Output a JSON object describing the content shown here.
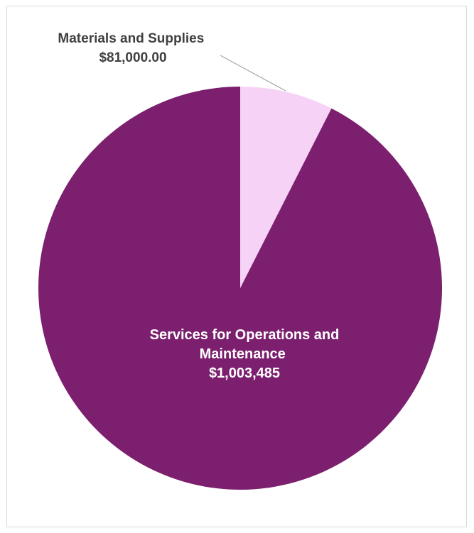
{
  "chart_data": {
    "type": "pie",
    "title": "",
    "slices": [
      {
        "name": "Materials and Supplies",
        "value": 81000.0,
        "value_label": "$81,000.00",
        "color": "#f6d3f6"
      },
      {
        "name": "Services for Operations and Maintenance",
        "value": 1003485,
        "value_label": "$1,003,485",
        "color": "#7b1f6e"
      }
    ],
    "start_angle": "12 o'clock, clockwise",
    "legend": "none",
    "label_color_inside": "#ffffff",
    "label_color_outside": "#404040",
    "leader_line_color": "#a6a6a6"
  }
}
